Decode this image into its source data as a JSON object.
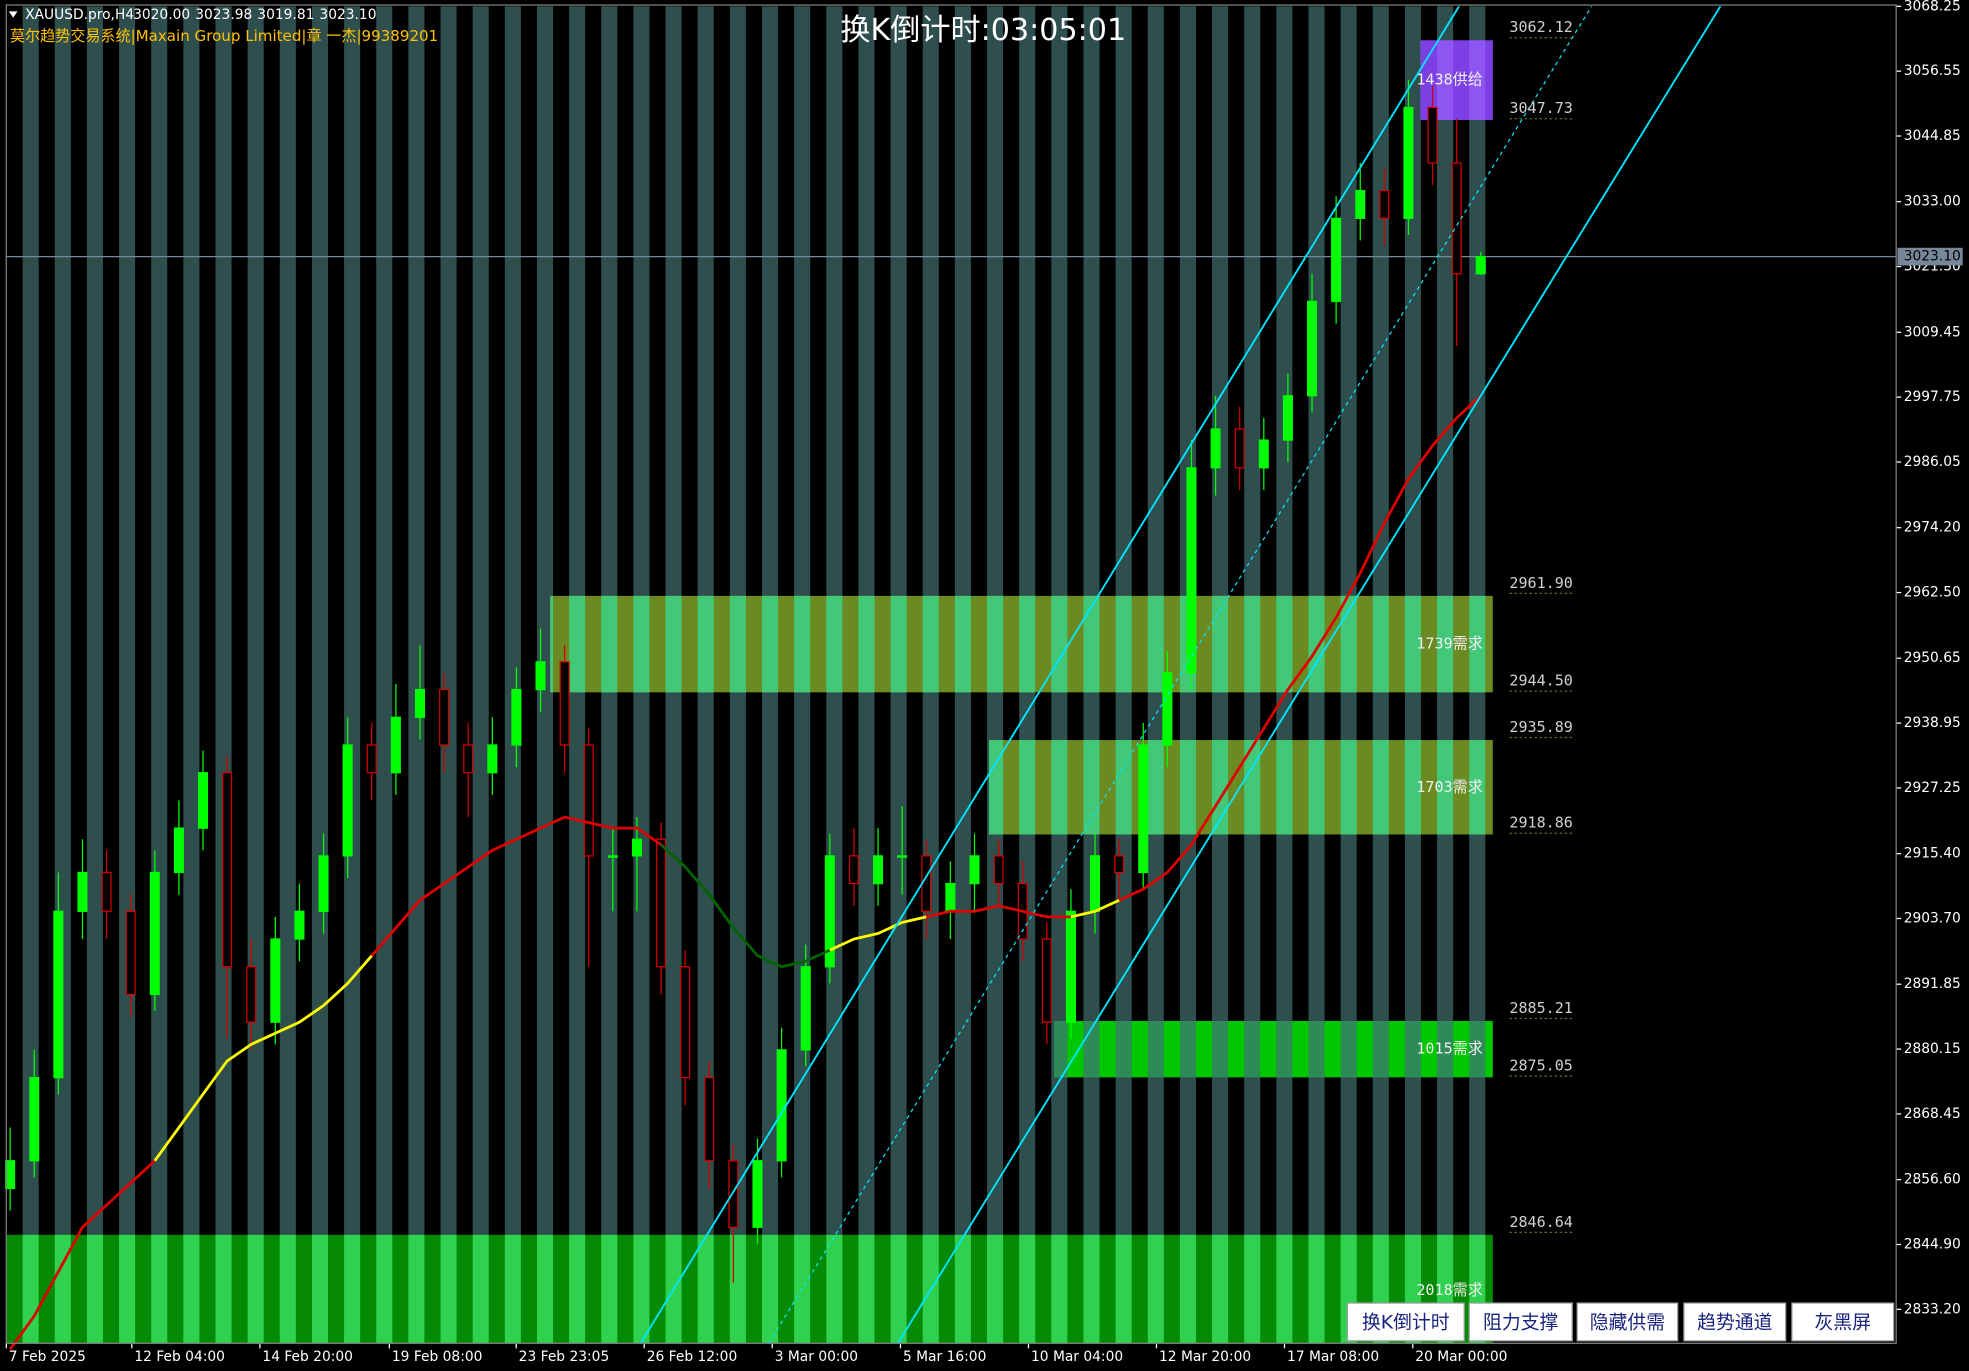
{
  "header": {
    "symbol": "XAUUSD.pro,H4",
    "ohlc": [
      "3020.00",
      "3023.98",
      "3019.81",
      "3023.10"
    ],
    "subtitle": "莫尔趋势交易系统|Maxain Group Limited|章 一杰|99389201",
    "countdown": "换K倒计时:03:05:01"
  },
  "buttons": [
    "换K倒计时",
    "阻力支撑",
    "隐藏供需",
    "趋势通道",
    "灰黑屏"
  ],
  "chart_data": {
    "type": "candlestick",
    "up_color": "#00ff00",
    "down_color": "#d00000",
    "open": [
      2855,
      2860,
      2875,
      2905,
      2912,
      2905,
      2890,
      2912,
      2920,
      2930,
      2895,
      2885,
      2900,
      2905,
      2915,
      2935,
      2930,
      2940,
      2945,
      2935,
      2930,
      2935,
      2945,
      2950,
      2935,
      2915,
      2915,
      2918,
      2895,
      2875,
      2860,
      2848,
      2860,
      2880,
      2895,
      2915,
      2910,
      2915,
      2915,
      2905,
      2910,
      2915,
      2910,
      2900,
      2885,
      2905,
      2915,
      2912,
      2935,
      2948,
      2985,
      2992,
      2985,
      2990,
      2998,
      3015,
      3030,
      3035,
      3030,
      3050,
      3040,
      3020
    ],
    "high": [
      2866,
      2880,
      2912,
      2918,
      2916,
      2908,
      2916,
      2925,
      2934,
      2933,
      2900,
      2904,
      2910,
      2919,
      2940,
      2939,
      2946,
      2953,
      2948,
      2939,
      2940,
      2949,
      2956,
      2953,
      2938,
      2920,
      2922,
      2921,
      2898,
      2878,
      2863,
      2864,
      2884,
      2899,
      2919,
      2920,
      2920,
      2924,
      2918,
      2914,
      2919,
      2918,
      2914,
      2903,
      2909,
      2919,
      2918,
      2939,
      2952,
      2990,
      2998,
      2996,
      2994,
      3002,
      3020,
      3034,
      3040,
      3039,
      3055,
      3054,
      3048,
      3023.98
    ],
    "low": [
      2851,
      2857,
      2872,
      2900,
      2900,
      2886,
      2887,
      2908,
      2916,
      2882,
      2880,
      2881,
      2896,
      2901,
      2911,
      2925,
      2926,
      2936,
      2930,
      2922,
      2926,
      2931,
      2941,
      2930,
      2895,
      2905,
      2905,
      2890,
      2870,
      2855,
      2838,
      2845,
      2857,
      2877,
      2892,
      2906,
      2906,
      2908,
      2900,
      2900,
      2905,
      2906,
      2896,
      2881,
      2882,
      2901,
      2907,
      2909,
      2931,
      2945,
      2980,
      2981,
      2981,
      2986,
      2995,
      3011,
      3026,
      3025,
      3027,
      3036,
      3007,
      3019.81
    ],
    "close": [
      2860,
      2875,
      2905,
      2912,
      2905,
      2890,
      2912,
      2920,
      2930,
      2895,
      2885,
      2900,
      2905,
      2915,
      2935,
      2930,
      2940,
      2945,
      2935,
      2930,
      2935,
      2945,
      2950,
      2935,
      2915,
      2915,
      2918,
      2895,
      2875,
      2860,
      2848,
      2860,
      2880,
      2895,
      2915,
      2910,
      2915,
      2915,
      2905,
      2910,
      2915,
      2910,
      2900,
      2885,
      2905,
      2915,
      2912,
      2935,
      2948,
      2985,
      2992,
      2985,
      2990,
      2998,
      3015,
      3030,
      3035,
      3030,
      3050,
      3040,
      3020,
      3023.1
    ],
    "ma": [
      2826,
      2832,
      2840,
      2848,
      2852,
      2856,
      2860,
      2866,
      2872,
      2878,
      2881,
      2883,
      2885,
      2888,
      2892,
      2897,
      2902,
      2907,
      2910,
      2913,
      2916,
      2918,
      2920,
      2922,
      2921,
      2920,
      2920,
      2917,
      2913,
      2908,
      2902,
      2897,
      2895,
      2896,
      2898,
      2900,
      2901,
      2903,
      2904,
      2905,
      2905,
      2906,
      2905,
      2904,
      2904,
      2905,
      2907,
      2909,
      2912,
      2917,
      2924,
      2931,
      2938,
      2945,
      2951,
      2958,
      2966,
      2975,
      2983,
      2989,
      2994,
      2998
    ],
    "ma_colors": [
      "#e00000",
      "#e00000",
      "#e00000",
      "#e00000",
      "#e00000",
      "#e00000",
      "#ffff00",
      "#ffff00",
      "#ffff00",
      "#ffff00",
      "#ffff00",
      "#ffff00",
      "#ffff00",
      "#ffff00",
      "#ffff00",
      "#e00000",
      "#e00000",
      "#e00000",
      "#e00000",
      "#e00000",
      "#e00000",
      "#e00000",
      "#e00000",
      "#e00000",
      "#e00000",
      "#e00000",
      "#e00000",
      "#006400",
      "#006400",
      "#006400",
      "#006400",
      "#006400",
      "#006400",
      "#006400",
      "#ffff00",
      "#ffff00",
      "#ffff00",
      "#ffff00",
      "#e00000",
      "#e00000",
      "#e00000",
      "#e00000",
      "#e00000",
      "#e00000",
      "#ffff00",
      "#ffff00",
      "#e00000",
      "#e00000",
      "#e00000",
      "#e00000",
      "#e00000",
      "#e00000",
      "#e00000",
      "#e00000",
      "#e00000",
      "#e00000",
      "#e00000",
      "#e00000",
      "#e00000",
      "#e00000",
      "#e00000"
    ],
    "zones": [
      {
        "label": "1438供给",
        "from": 58.5,
        "high": 3062.12,
        "low": 3047.73,
        "color": "#7b3fe4",
        "stripe_color": "#8e55f0"
      },
      {
        "label": "1739需求",
        "from": 22.4,
        "high": {
          "value": 2961.9,
          "label": "2961.90"
        },
        "low": {
          "value": 2944.5,
          "label": "2944.50"
        },
        "color": "#6b8a22",
        "stripe_color": "#43c878"
      },
      {
        "label": "1703需求",
        "from": 40.6,
        "high": 2935.89,
        "low": 2918.86,
        "color": "#6b8a22",
        "stripe_color": "#43c878"
      },
      {
        "label": "1015需求",
        "from": 43.3,
        "high": 2885.21,
        "low": 2875.05,
        "color": "#00c800",
        "stripe_color": "#2e8b57"
      },
      {
        "label": "2018需求",
        "from": -0.16,
        "high": 2846.64,
        "color": "#058a05",
        "stripe_color": "#2fd14f"
      }
    ],
    "trend_lines": [
      {
        "x": [
          26.15,
          60.1
        ],
        "y": [
          2827.07,
          3068.25
        ],
        "dashed": false
      },
      {
        "x": [
          36.82,
          70.94
        ],
        "y": [
          2827.07,
          3068.25
        ],
        "dashed": false
      },
      {
        "x": [
          31.46,
          65.6
        ],
        "y": [
          2827.07,
          3068.25
        ],
        "dashed": true
      }
    ],
    "trend_color": "#00e5ff",
    "current_price": {
      "value": 3023.1,
      "label": "3023.10"
    },
    "xlim": [
      -0.16,
      78.23
    ],
    "ylim": [
      2827.07,
      3068.25
    ],
    "xticks": [
      {
        "value": -0.16,
        "label": "7 Feb 2025"
      },
      {
        "value": 5.05,
        "label": "12 Feb 04:00"
      },
      {
        "value": 10.36,
        "label": "14 Feb 20:00"
      },
      {
        "value": 15.73,
        "label": "19 Feb 08:00"
      },
      {
        "value": 20.99,
        "label": "23 Feb 23:05"
      },
      {
        "value": 26.3,
        "label": "26 Feb 12:00"
      },
      {
        "value": 31.61,
        "label": "3 Mar 00:00"
      },
      {
        "value": 36.93,
        "label": "5 Mar 16:00"
      },
      {
        "value": 42.24,
        "label": "10 Mar 04:00"
      },
      {
        "value": 47.55,
        "label": "12 Mar 20:00"
      },
      {
        "value": 52.86,
        "label": "17 Mar 08:00"
      },
      {
        "value": 58.18,
        "label": "20 Mar 00:00"
      }
    ],
    "yticks": [
      3068.25,
      3056.55,
      3044.85,
      {
        "value": 3033,
        "label": "3033.00"
      },
      {
        "value": 3021.3,
        "label": "3021.30"
      },
      3009.45,
      2997.75,
      2986.05,
      {
        "value": 2974.2,
        "label": "2974.20"
      },
      {
        "value": 2962.5,
        "label": "2962.50"
      },
      2950.65,
      2938.95,
      2927.25,
      {
        "value": 2915.4,
        "label": "2915.40"
      },
      {
        "value": 2903.7,
        "label": "2903.70"
      },
      2891.85,
      2880.15,
      2868.45,
      {
        "value": 2856.6,
        "label": "2856.60"
      },
      {
        "value": 2844.9,
        "label": "2844.90"
      },
      {
        "value": 2833.2,
        "label": "2833.20"
      }
    ]
  }
}
